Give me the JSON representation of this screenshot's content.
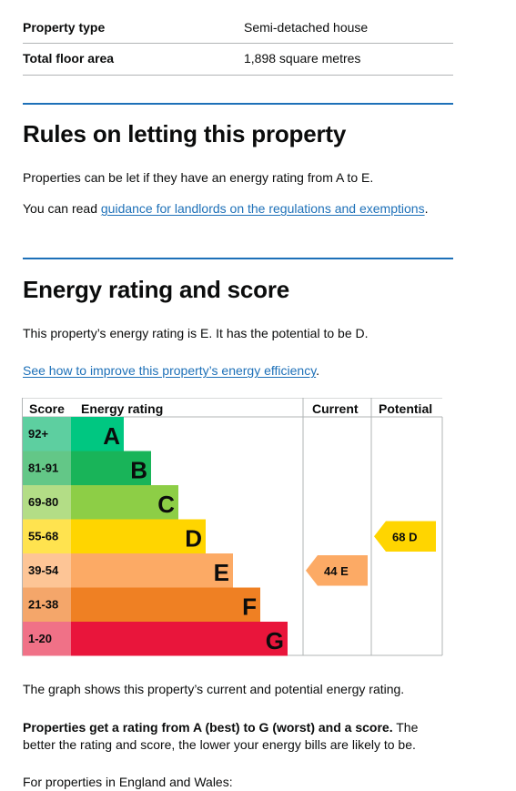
{
  "summary": {
    "rows": [
      {
        "key": "Property type",
        "value": "Semi-detached house"
      },
      {
        "key": "Total floor area",
        "value": "1,898 square metres"
      }
    ]
  },
  "letting": {
    "heading": "Rules on letting this property",
    "p1": "Properties can be let if they have an energy rating from A to E.",
    "p2_prefix": "You can read ",
    "p2_link": "guidance for landlords on the regulations and exemptions",
    "p2_suffix": "."
  },
  "energy": {
    "heading": "Energy rating and score",
    "p1": "This property’s energy rating is E. It has the potential to be D.",
    "improve_link": "See how to improve this property’s energy efficiency",
    "improve_suffix": ".",
    "graph_caption": "The graph shows this property’s current and potential energy rating.",
    "bold_text": "Properties get a rating from A (best) to G (worst) and a score.",
    "rest_text": " The better the rating and score, the lower your energy bills are likely to be.",
    "cutoff_text": "For properties in England and Wales:"
  },
  "chart_data": {
    "type": "table",
    "headers": {
      "score": "Score",
      "rating": "Energy rating",
      "current": "Current",
      "potential": "Potential"
    },
    "bands": [
      {
        "score": "92+",
        "letter": "A",
        "color": "#00c781",
        "score_bg": "#5dcfa0"
      },
      {
        "score": "81-91",
        "letter": "B",
        "color": "#19b459",
        "score_bg": "#63c787"
      },
      {
        "score": "69-80",
        "letter": "C",
        "color": "#8dce46",
        "score_bg": "#b3dd86"
      },
      {
        "score": "55-68",
        "letter": "D",
        "color": "#ffd500",
        "score_bg": "#ffe34f"
      },
      {
        "score": "39-54",
        "letter": "E",
        "color": "#fcaa65",
        "score_bg": "#fdc596"
      },
      {
        "score": "21-38",
        "letter": "F",
        "color": "#ef8023",
        "score_bg": "#f4a66a"
      },
      {
        "score": "1-20",
        "letter": "G",
        "color": "#e9153b",
        "score_bg": "#f07187"
      }
    ],
    "current": {
      "score": 44,
      "letter": "E",
      "label": "44  E"
    },
    "potential": {
      "score": 68,
      "letter": "D",
      "label": "68  D"
    }
  }
}
